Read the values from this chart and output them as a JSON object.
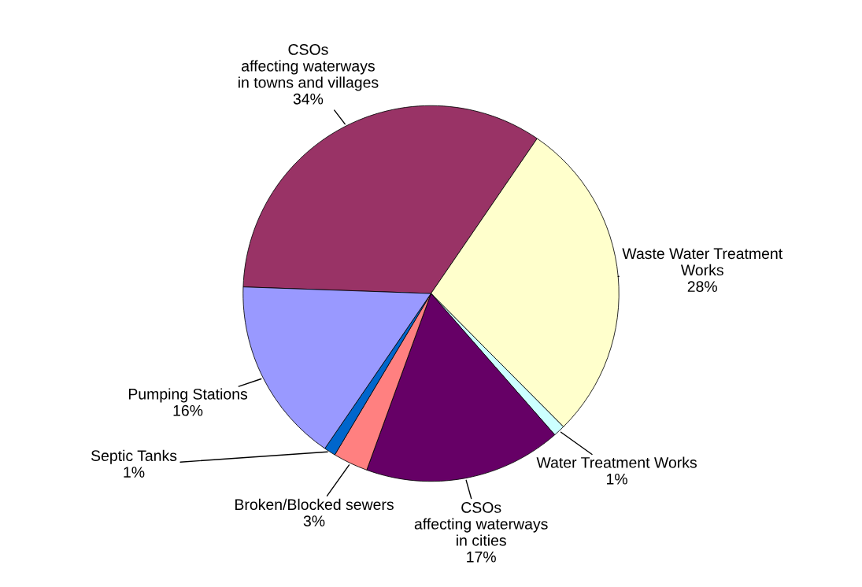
{
  "chart_data": {
    "type": "pie",
    "categories": [
      "CSOs\naffecting waterways\nin towns and villages",
      "Waste Water Treatment\nWorks",
      "Water Treatment Works",
      "CSOs\naffecting waterways\nin cities",
      "Broken/Blocked sewers",
      "Septic Tanks",
      "Pumping Stations"
    ],
    "values": [
      34,
      28,
      1,
      17,
      3,
      1,
      16
    ],
    "value_labels": [
      "34%",
      "28%",
      "1%",
      "17%",
      "3%",
      "1%",
      "16%"
    ],
    "colors": [
      "#993366",
      "#ffffcc",
      "#ccffff",
      "#660066",
      "#ff8080",
      "#0066cc",
      "#9999ff"
    ]
  }
}
